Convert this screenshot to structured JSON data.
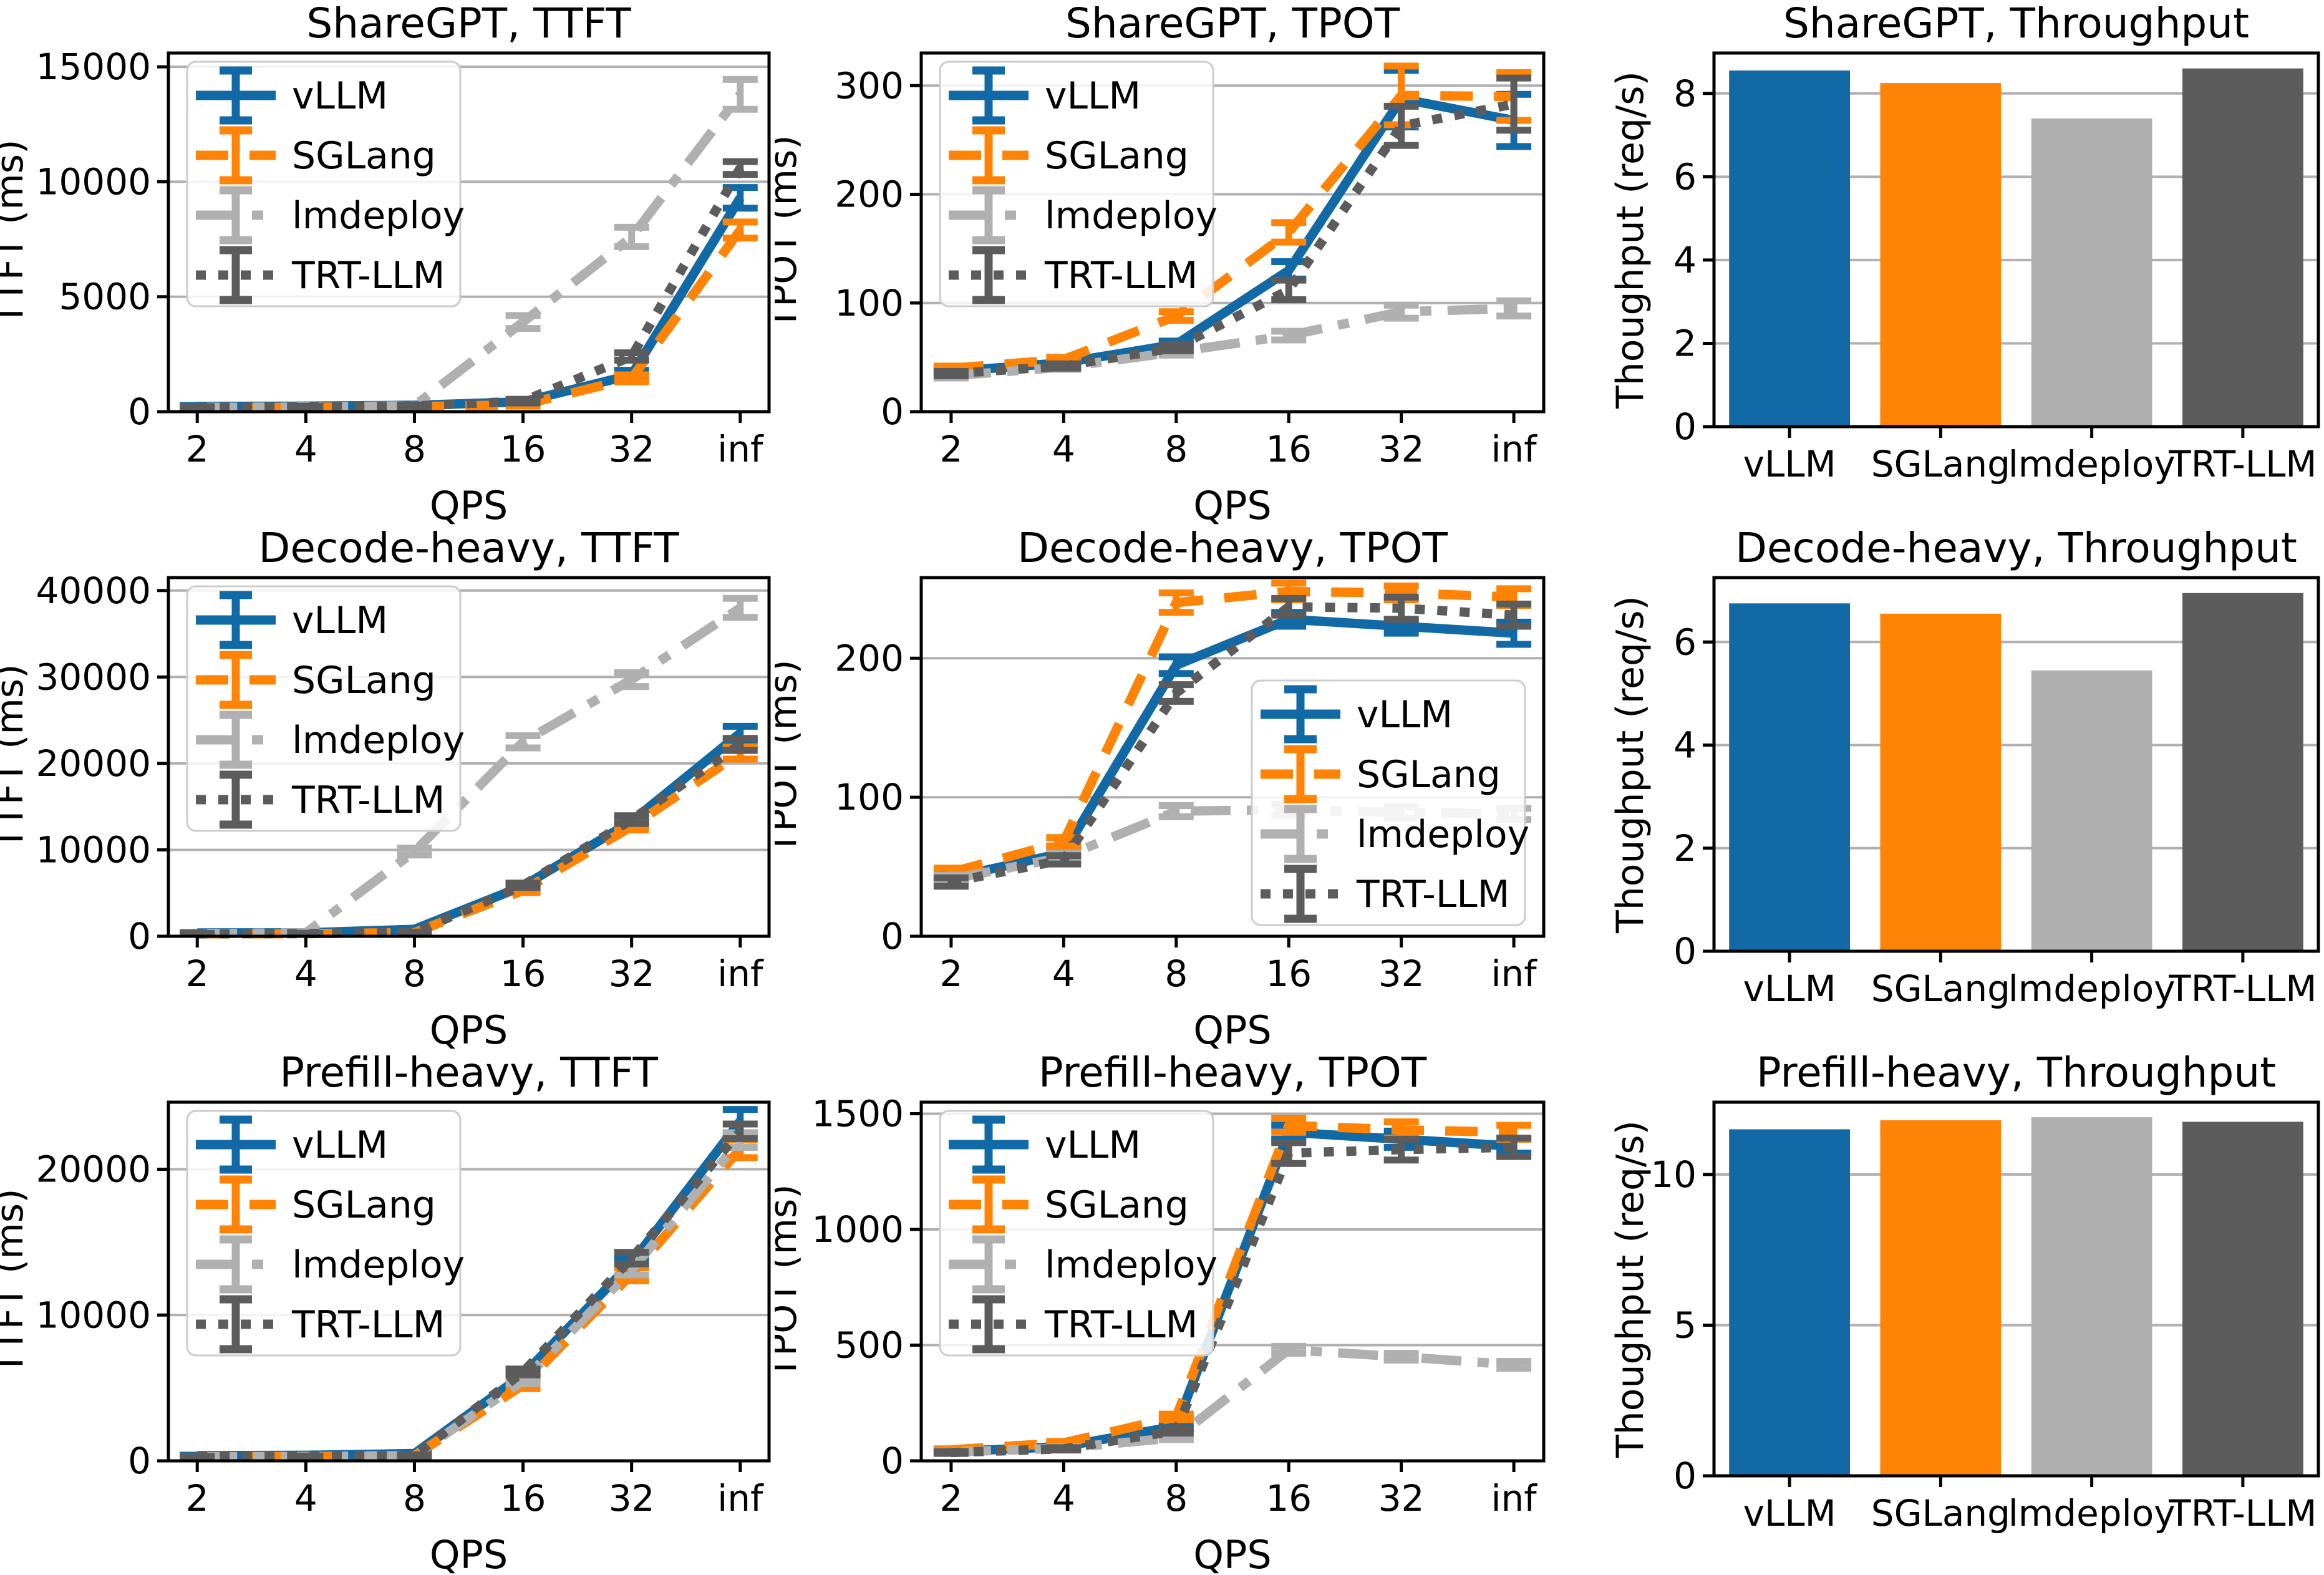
{
  "figure": {
    "rows": 3,
    "cols": 3,
    "background": "#ffffff"
  },
  "palette": [
    {
      "name": "vLLM",
      "color": "#116aa5",
      "dash": "solid"
    },
    {
      "name": "SGLang",
      "color": "#ff8304",
      "dash": "dashed"
    },
    {
      "name": "lmdeploy",
      "color": "#b0b0b0",
      "dash": "dashdot"
    },
    {
      "name": "TRT-LLM",
      "color": "#5c5c5c",
      "dash": "dotted"
    }
  ],
  "style_colors": {
    "grid": "#b0b0b0",
    "spine": "#000000",
    "legend_border": "#cccccc",
    "legend_bg": "#ffffff"
  },
  "chart_data": [
    {
      "type": "line",
      "id": "sharegpt-ttft",
      "title": "ShareGPT, TTFT",
      "xlabel": "QPS",
      "ylabel": "TTFT (ms)",
      "x_ticklabels": [
        "2",
        "4",
        "8",
        "16",
        "32",
        "inf"
      ],
      "ylim": [
        0,
        15600
      ],
      "yticks": [
        0,
        5000,
        10000,
        15000
      ],
      "legend": "upper-left",
      "grid": true,
      "series": [
        {
          "name": "vLLM",
          "values": [
            230,
            240,
            280,
            430,
            1600,
            9300
          ],
          "err": [
            40,
            40,
            50,
            80,
            200,
            450
          ]
        },
        {
          "name": "SGLang",
          "values": [
            180,
            190,
            220,
            300,
            1450,
            7900
          ],
          "err": [
            30,
            30,
            40,
            60,
            150,
            350
          ]
        },
        {
          "name": "lmdeploy",
          "values": [
            190,
            200,
            260,
            3900,
            7600,
            13800
          ],
          "err": [
            30,
            30,
            40,
            280,
            420,
            650
          ]
        },
        {
          "name": "TRT-LLM",
          "values": [
            190,
            200,
            250,
            460,
            2400,
            10600
          ],
          "err": [
            30,
            30,
            40,
            80,
            160,
            280
          ]
        }
      ]
    },
    {
      "type": "line",
      "id": "sharegpt-tpot",
      "title": "ShareGPT, TPOT",
      "xlabel": "QPS",
      "ylabel": "TPOT (ms)",
      "x_ticklabels": [
        "2",
        "4",
        "8",
        "16",
        "32",
        "inf"
      ],
      "ylim": [
        0,
        330
      ],
      "yticks": [
        0,
        100,
        200,
        300
      ],
      "legend": "upper-left",
      "grid": true,
      "series": [
        {
          "name": "vLLM",
          "values": [
            37,
            45,
            62,
            130,
            288,
            268
          ],
          "err": [
            2,
            2,
            3,
            8,
            26,
            24
          ]
        },
        {
          "name": "SGLang",
          "values": [
            40,
            48,
            88,
            165,
            291,
            290
          ],
          "err": [
            2,
            2,
            4,
            9,
            27,
            22
          ]
        },
        {
          "name": "lmdeploy",
          "values": [
            33,
            41,
            55,
            70,
            92,
            95
          ],
          "err": [
            2,
            2,
            3,
            4,
            6,
            7
          ]
        },
        {
          "name": "TRT-LLM",
          "values": [
            35,
            42,
            59,
            112,
            263,
            283
          ],
          "err": [
            2,
            2,
            3,
            9,
            18,
            24
          ]
        }
      ]
    },
    {
      "type": "bar",
      "id": "sharegpt-throughput",
      "title": "ShareGPT, Throughput",
      "ylabel": "Thoughput (req/s)",
      "categories": [
        "vLLM",
        "SGLang",
        "lmdeploy",
        "TRT-LLM"
      ],
      "values": [
        8.55,
        8.25,
        7.4,
        8.6
      ],
      "ylim": [
        0,
        8.97
      ],
      "yticks": [
        0,
        2,
        4,
        6,
        8
      ],
      "legend": null,
      "grid": true
    },
    {
      "type": "line",
      "id": "decode-heavy-ttft",
      "title": "Decode-heavy, TTFT",
      "xlabel": "QPS",
      "ylabel": "TTFT (ms)",
      "x_ticklabels": [
        "2",
        "4",
        "8",
        "16",
        "32",
        "inf"
      ],
      "ylim": [
        0,
        41500
      ],
      "yticks": [
        0,
        10000,
        20000,
        30000,
        40000
      ],
      "legend": "upper-left",
      "grid": true,
      "series": [
        {
          "name": "vLLM",
          "values": [
            380,
            400,
            800,
            5800,
            13300,
            23500
          ],
          "err": [
            50,
            50,
            90,
            250,
            400,
            800
          ]
        },
        {
          "name": "SGLang",
          "values": [
            280,
            300,
            420,
            5300,
            12700,
            21200
          ],
          "err": [
            40,
            40,
            60,
            250,
            400,
            700
          ]
        },
        {
          "name": "lmdeploy",
          "values": [
            300,
            400,
            9800,
            22500,
            29700,
            38000
          ],
          "err": [
            40,
            50,
            400,
            700,
            800,
            1100
          ]
        },
        {
          "name": "TRT-LLM",
          "values": [
            290,
            310,
            430,
            5900,
            13500,
            22200
          ],
          "err": [
            40,
            40,
            60,
            250,
            450,
            700
          ]
        }
      ]
    },
    {
      "type": "line",
      "id": "decode-heavy-tpot",
      "title": "Decode-heavy, TPOT",
      "xlabel": "QPS",
      "ylabel": "TPOT (ms)",
      "x_ticklabels": [
        "2",
        "4",
        "8",
        "16",
        "32",
        "inf"
      ],
      "ylim": [
        0,
        258
      ],
      "yticks": [
        0,
        100,
        200
      ],
      "legend": "lower-right",
      "grid": true,
      "series": [
        {
          "name": "vLLM",
          "values": [
            42,
            60,
            195,
            228,
            223,
            218
          ],
          "err": [
            3,
            3,
            6,
            5,
            5,
            8
          ]
        },
        {
          "name": "SGLang",
          "values": [
            46,
            68,
            240,
            248,
            247,
            244
          ],
          "err": [
            3,
            3,
            7,
            6,
            5,
            6
          ]
        },
        {
          "name": "lmdeploy",
          "values": [
            41,
            57,
            90,
            91,
            89,
            88
          ],
          "err": [
            3,
            3,
            4,
            4,
            4,
            4
          ]
        },
        {
          "name": "TRT-LLM",
          "values": [
            39,
            55,
            175,
            237,
            236,
            231
          ],
          "err": [
            3,
            3,
            6,
            6,
            8,
            8
          ]
        }
      ]
    },
    {
      "type": "bar",
      "id": "decode-heavy-throughput",
      "title": "Decode-heavy, Throughput",
      "ylabel": "Thoughput (req/s)",
      "categories": [
        "vLLM",
        "SGLang",
        "lmdeploy",
        "TRT-LLM"
      ],
      "values": [
        6.75,
        6.55,
        5.45,
        6.95
      ],
      "ylim": [
        0,
        7.25
      ],
      "yticks": [
        0,
        2,
        4,
        6
      ],
      "legend": null,
      "grid": true
    },
    {
      "type": "line",
      "id": "prefill-heavy-ttft",
      "title": "Prefill-heavy, TTFT",
      "xlabel": "QPS",
      "ylabel": "TTFT (ms)",
      "x_ticklabels": [
        "2",
        "4",
        "8",
        "16",
        "32",
        "inf"
      ],
      "ylim": [
        0,
        24600
      ],
      "yticks": [
        0,
        10000,
        20000
      ],
      "legend": "upper-left",
      "grid": true,
      "series": [
        {
          "name": "vLLM",
          "values": [
            350,
            380,
            500,
            5900,
            13600,
            23300
          ],
          "err": [
            40,
            40,
            60,
            200,
            350,
            800
          ]
        },
        {
          "name": "SGLang",
          "values": [
            280,
            300,
            360,
            5200,
            12800,
            21400
          ],
          "err": [
            30,
            30,
            50,
            250,
            450,
            600
          ]
        },
        {
          "name": "lmdeploy",
          "values": [
            280,
            300,
            360,
            5500,
            13100,
            22000
          ],
          "err": [
            30,
            30,
            50,
            200,
            350,
            500
          ]
        },
        {
          "name": "TRT-LLM",
          "values": [
            280,
            300,
            360,
            6100,
            13900,
            22600
          ],
          "err": [
            30,
            30,
            50,
            200,
            400,
            500
          ]
        }
      ]
    },
    {
      "type": "line",
      "id": "prefill-heavy-tpot",
      "title": "Prefill-heavy, TPOT",
      "xlabel": "QPS",
      "ylabel": "TPOT (ms)",
      "x_ticklabels": [
        "2",
        "4",
        "8",
        "16",
        "32",
        "inf"
      ],
      "ylim": [
        0,
        1550
      ],
      "yticks": [
        0,
        500,
        1000,
        1500
      ],
      "legend": "upper-left",
      "grid": true,
      "series": [
        {
          "name": "vLLM",
          "values": [
            40,
            62,
            150,
            1420,
            1390,
            1360
          ],
          "err": [
            4,
            5,
            10,
            30,
            35,
            30
          ]
        },
        {
          "name": "SGLang",
          "values": [
            48,
            78,
            190,
            1450,
            1430,
            1420
          ],
          "err": [
            4,
            6,
            12,
            30,
            35,
            30
          ]
        },
        {
          "name": "lmdeploy",
          "values": [
            38,
            55,
            100,
            480,
            450,
            415
          ],
          "err": [
            4,
            5,
            8,
            15,
            15,
            15
          ]
        },
        {
          "name": "TRT-LLM",
          "values": [
            36,
            52,
            130,
            1330,
            1345,
            1355
          ],
          "err": [
            4,
            5,
            10,
            45,
            45,
            40
          ]
        }
      ]
    },
    {
      "type": "bar",
      "id": "prefill-heavy-throughput",
      "title": "Prefill-heavy, Throughput",
      "ylabel": "Thoughput (req/s)",
      "categories": [
        "vLLM",
        "SGLang",
        "lmdeploy",
        "TRT-LLM"
      ],
      "values": [
        11.5,
        11.8,
        11.9,
        11.75
      ],
      "ylim": [
        0,
        12.4
      ],
      "yticks": [
        0,
        5,
        10
      ],
      "legend": null,
      "grid": true
    }
  ]
}
